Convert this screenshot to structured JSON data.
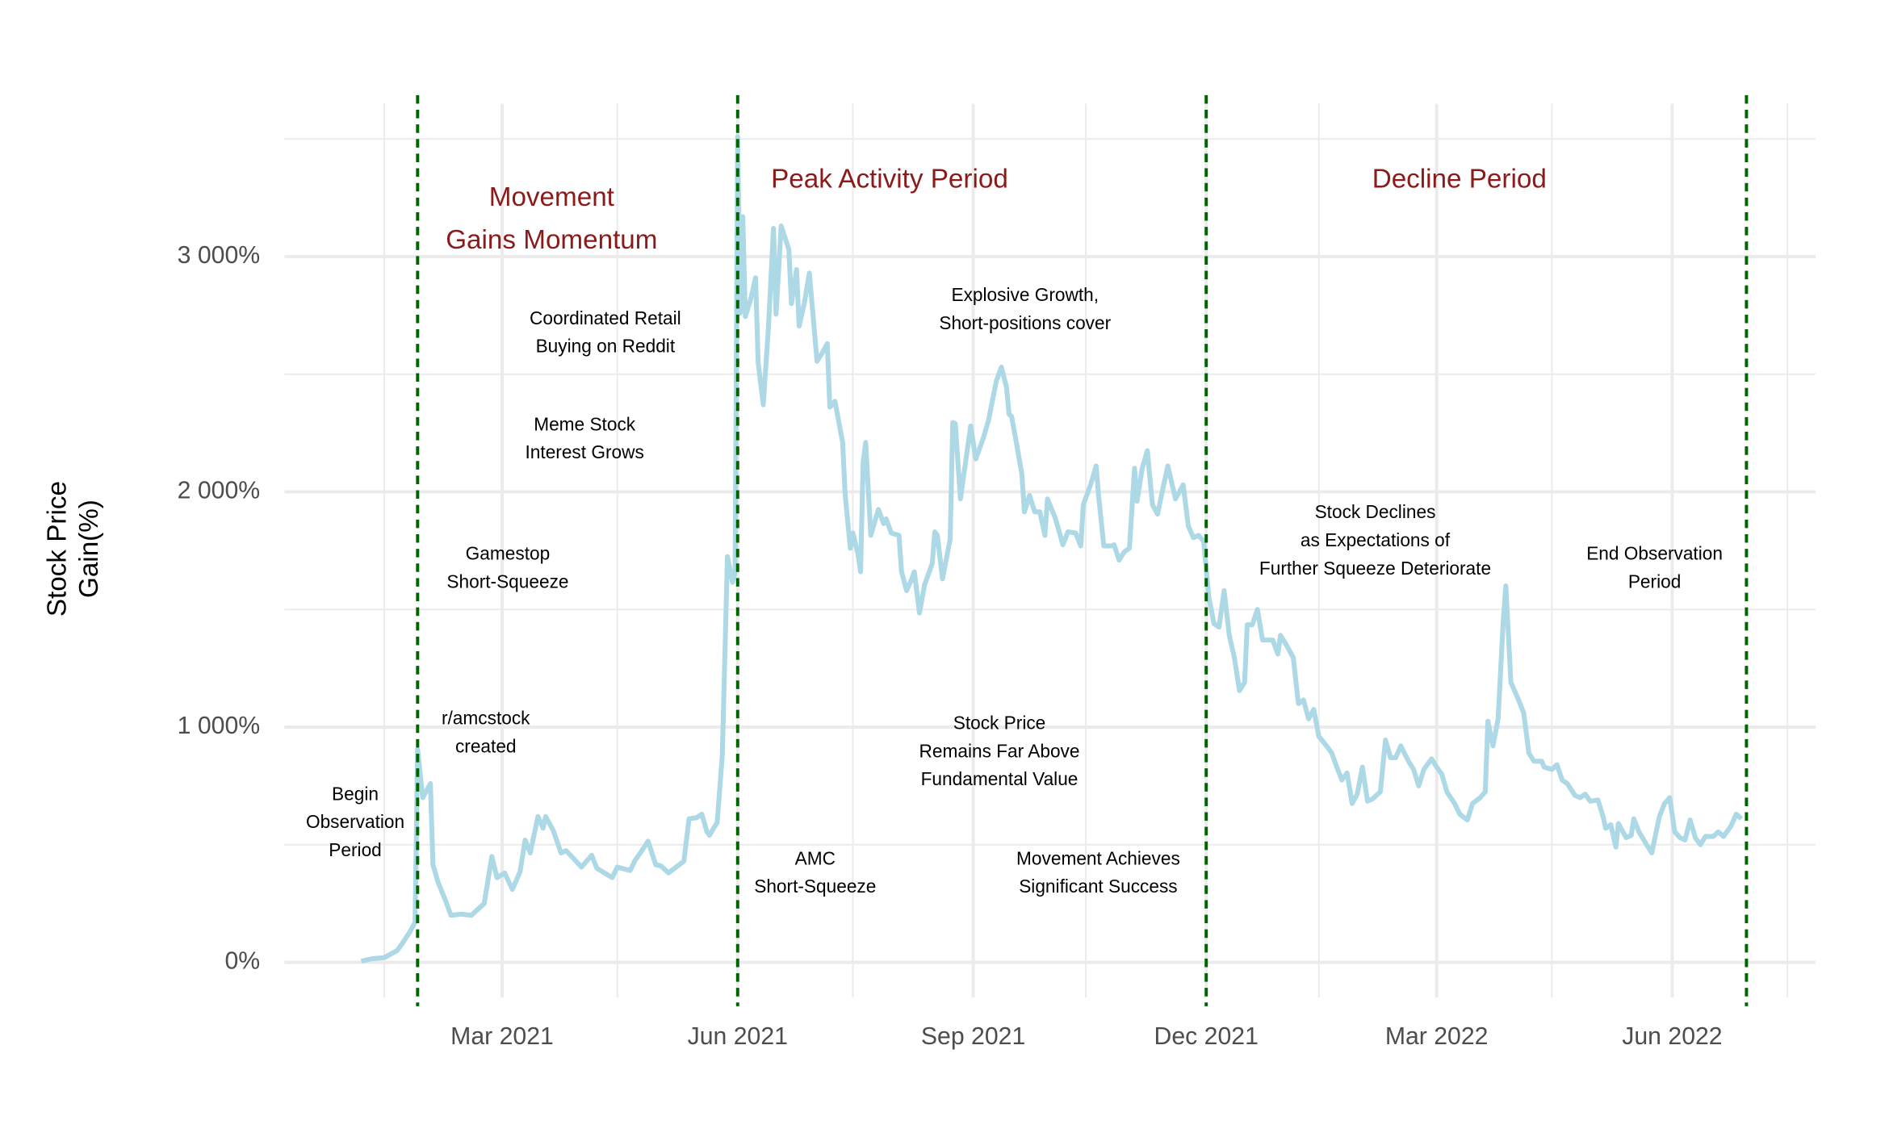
{
  "chart_data": {
    "type": "line",
    "y_axis_title": [
      "Stock Price",
      "Gain(%)"
    ],
    "xlim": [
      "2020-12-06",
      "2022-07-27"
    ],
    "xticks": [
      {
        "value": "2021-03-01",
        "label": "Mar 2021"
      },
      {
        "value": "2021-06-01",
        "label": "Jun 2021"
      },
      {
        "value": "2021-09-01",
        "label": "Sep 2021"
      },
      {
        "value": "2021-12-01",
        "label": "Dec 2021"
      },
      {
        "value": "2022-03-01",
        "label": "Mar 2022"
      },
      {
        "value": "2022-06-01",
        "label": "Jun 2022"
      }
    ],
    "x_minor_grid": [
      "2021-01-14",
      "2021-04-15",
      "2021-07-16",
      "2021-10-15",
      "2022-01-14",
      "2022-04-15",
      "2022-07-16"
    ],
    "ylim": [
      -150,
      3650
    ],
    "yticks": [
      {
        "value": 0,
        "label": "0%"
      },
      {
        "value": 1000,
        "label": "1 000%"
      },
      {
        "value": 2000,
        "label": "2 000%"
      },
      {
        "value": 3000,
        "label": "3 000%"
      }
    ],
    "y_minor_grid": [
      500,
      1500,
      2500,
      3500
    ],
    "grid": true,
    "series": [
      {
        "color": "#add8e6",
        "x": [
          "2021-01-05",
          "2021-01-09",
          "2021-01-14",
          "2021-01-19",
          "2021-01-21",
          "2021-01-24",
          "2021-01-26",
          "2021-01-27",
          "2021-01-29",
          "2021-02-01",
          "2021-02-02",
          "2021-02-04",
          "2021-02-07",
          "2021-02-09",
          "2021-02-13",
          "2021-02-17",
          "2021-02-19",
          "2021-02-22",
          "2021-02-25",
          "2021-02-27",
          "2021-03-02",
          "2021-03-05",
          "2021-03-08",
          "2021-03-10",
          "2021-03-12",
          "2021-03-15",
          "2021-03-17",
          "2021-03-18",
          "2021-03-21",
          "2021-03-24",
          "2021-03-26",
          "2021-03-29",
          "2021-04-01",
          "2021-04-05",
          "2021-04-07",
          "2021-04-10",
          "2021-04-13",
          "2021-04-15",
          "2021-04-20",
          "2021-04-22",
          "2021-04-24",
          "2021-04-27",
          "2021-04-30",
          "2021-05-02",
          "2021-05-05",
          "2021-05-08",
          "2021-05-11",
          "2021-05-13",
          "2021-05-16",
          "2021-05-18",
          "2021-05-20",
          "2021-05-21",
          "2021-05-24",
          "2021-05-26",
          "2021-05-28",
          "2021-05-30",
          "2021-05-31",
          "2021-06-01",
          "2021-06-02",
          "2021-06-03",
          "2021-06-04",
          "2021-06-06",
          "2021-06-08",
          "2021-06-09",
          "2021-06-11",
          "2021-06-13",
          "2021-06-15",
          "2021-06-16",
          "2021-06-18",
          "2021-06-21",
          "2021-06-22",
          "2021-06-24",
          "2021-06-25",
          "2021-06-27",
          "2021-06-29",
          "2021-07-02",
          "2021-07-04",
          "2021-07-06",
          "2021-07-07",
          "2021-07-09",
          "2021-07-12",
          "2021-07-13",
          "2021-07-15",
          "2021-07-16",
          "2021-07-18",
          "2021-07-19",
          "2021-07-20",
          "2021-07-21",
          "2021-07-23",
          "2021-07-25",
          "2021-07-26",
          "2021-07-28",
          "2021-07-29",
          "2021-07-31",
          "2021-08-03",
          "2021-08-04",
          "2021-08-06",
          "2021-08-08",
          "2021-08-09",
          "2021-08-11",
          "2021-08-13",
          "2021-08-16",
          "2021-08-17",
          "2021-08-18",
          "2021-08-20",
          "2021-08-23",
          "2021-08-24",
          "2021-08-25",
          "2021-08-27",
          "2021-08-29",
          "2021-08-31",
          "2021-09-02",
          "2021-09-05",
          "2021-09-07",
          "2021-09-10",
          "2021-09-12",
          "2021-09-14",
          "2021-09-15",
          "2021-09-16",
          "2021-09-18",
          "2021-09-20",
          "2021-09-21",
          "2021-09-23",
          "2021-09-25",
          "2021-09-27",
          "2021-09-29",
          "2021-09-30",
          "2021-10-03",
          "2021-10-05",
          "2021-10-06",
          "2021-10-08",
          "2021-10-11",
          "2021-10-13",
          "2021-10-14",
          "2021-10-17",
          "2021-10-19",
          "2021-10-20",
          "2021-10-22",
          "2021-10-25",
          "2021-10-26",
          "2021-10-28",
          "2021-10-30",
          "2021-11-01",
          "2021-11-03",
          "2021-11-04",
          "2021-11-06",
          "2021-11-08",
          "2021-11-10",
          "2021-11-12",
          "2021-11-14",
          "2021-11-16",
          "2021-11-19",
          "2021-11-22",
          "2021-11-24",
          "2021-11-26",
          "2021-11-28",
          "2021-11-30",
          "2021-12-02",
          "2021-12-04",
          "2021-12-06",
          "2021-12-08",
          "2021-12-10",
          "2021-12-12",
          "2021-12-14",
          "2021-12-16",
          "2021-12-17",
          "2021-12-19",
          "2021-12-21",
          "2021-12-23",
          "2021-12-27",
          "2021-12-29",
          "2021-12-30",
          "2022-01-01",
          "2022-01-04",
          "2022-01-06",
          "2022-01-08",
          "2022-01-10",
          "2022-01-12",
          "2022-01-14",
          "2022-01-17",
          "2022-01-19",
          "2022-01-21",
          "2022-01-23",
          "2022-01-25",
          "2022-01-27",
          "2022-01-29",
          "2022-01-31",
          "2022-02-02",
          "2022-02-04",
          "2022-02-07",
          "2022-02-09",
          "2022-02-11",
          "2022-02-13",
          "2022-02-15",
          "2022-02-18",
          "2022-02-20",
          "2022-02-22",
          "2022-02-24",
          "2022-02-27",
          "2022-03-01",
          "2022-03-03",
          "2022-03-05",
          "2022-03-08",
          "2022-03-10",
          "2022-03-13",
          "2022-03-15",
          "2022-03-18",
          "2022-03-20",
          "2022-03-21",
          "2022-03-23",
          "2022-03-25",
          "2022-03-27",
          "2022-03-28",
          "2022-03-30",
          "2022-04-02",
          "2022-04-04",
          "2022-04-06",
          "2022-04-08",
          "2022-04-11",
          "2022-04-12",
          "2022-04-15",
          "2022-04-17",
          "2022-04-19",
          "2022-04-21",
          "2022-04-24",
          "2022-04-26",
          "2022-04-28",
          "2022-04-30",
          "2022-05-03",
          "2022-05-05",
          "2022-05-06",
          "2022-05-08",
          "2022-05-10",
          "2022-05-11",
          "2022-05-14",
          "2022-05-16",
          "2022-05-17",
          "2022-05-19",
          "2022-05-22",
          "2022-05-24",
          "2022-05-27",
          "2022-05-29",
          "2022-05-31",
          "2022-06-02",
          "2022-06-04",
          "2022-06-06",
          "2022-06-08",
          "2022-06-10",
          "2022-06-12",
          "2022-06-14",
          "2022-06-17",
          "2022-06-19",
          "2022-06-21",
          "2022-06-24",
          "2022-06-26",
          "2022-06-28"
        ],
        "values": [
          5,
          15,
          20,
          50,
          80,
          130,
          170,
          905,
          700,
          760,
          415,
          340,
          260,
          200,
          205,
          200,
          220,
          250,
          450,
          360,
          380,
          310,
          385,
          520,
          465,
          620,
          570,
          620,
          560,
          465,
          475,
          440,
          405,
          455,
          400,
          380,
          360,
          405,
          390,
          435,
          465,
          515,
          415,
          410,
          380,
          405,
          430,
          610,
          615,
          630,
          555,
          540,
          595,
          880,
          1725,
          1615,
          1660,
          3510,
          2760,
          3170,
          2745,
          2815,
          2910,
          2550,
          2370,
          2695,
          3120,
          2755,
          3130,
          3030,
          2800,
          2945,
          2705,
          2800,
          2930,
          2555,
          2590,
          2630,
          2360,
          2385,
          2210,
          1985,
          1760,
          1825,
          1735,
          1660,
          2125,
          2210,
          1815,
          1890,
          1925,
          1865,
          1885,
          1825,
          1815,
          1660,
          1580,
          1630,
          1660,
          1485,
          1605,
          1695,
          1830,
          1815,
          1630,
          1800,
          2295,
          2290,
          1970,
          2125,
          2280,
          2140,
          2230,
          2305,
          2470,
          2530,
          2445,
          2330,
          2320,
          2200,
          2075,
          1915,
          1985,
          1915,
          1915,
          1815,
          1970,
          1890,
          1815,
          1775,
          1830,
          1825,
          1770,
          1945,
          2035,
          2110,
          1980,
          1770,
          1770,
          1775,
          1710,
          1745,
          1760,
          2100,
          1960,
          2100,
          2175,
          1945,
          1905,
          2010,
          2110,
          1970,
          2030,
          1855,
          1805,
          1815,
          1790,
          1555,
          1440,
          1425,
          1580,
          1390,
          1295,
          1155,
          1190,
          1435,
          1435,
          1500,
          1370,
          1370,
          1310,
          1390,
          1355,
          1295,
          1100,
          1115,
          1035,
          1075,
          960,
          920,
          890,
          830,
          775,
          805,
          675,
          715,
          830,
          685,
          695,
          725,
          945,
          870,
          870,
          920,
          855,
          820,
          750,
          820,
          865,
          830,
          800,
          725,
          675,
          630,
          605,
          675,
          700,
          725,
          1025,
          920,
          1035,
          1450,
          1600,
          1190,
          1115,
          1060,
          890,
          855,
          855,
          830,
          820,
          840,
          775,
          760,
          710,
          700,
          715,
          685,
          690,
          620,
          570,
          585,
          490,
          590,
          530,
          540,
          610,
          555,
          500,
          465,
          620,
          675,
          700,
          555,
          530,
          520,
          605,
          530,
          500,
          535,
          535,
          555,
          535,
          580,
          630,
          610
        ]
      }
    ],
    "vlines": {
      "color": "#006400",
      "x": [
        "2021-01-27",
        "2021-06-01",
        "2021-12-01",
        "2022-06-30"
      ]
    },
    "period_color": "#8b1a1a",
    "periods": [
      [
        "Movement",
        "Gains Momentum"
      ],
      [
        "Peak Activity Period"
      ],
      [
        "Decline Period"
      ]
    ],
    "annotations": [
      [
        "Begin",
        "Observation",
        "Period"
      ],
      [
        "r/amcstock",
        "created"
      ],
      [
        "Gamestop",
        "Short-Squeeze"
      ],
      [
        "Meme Stock",
        "Interest Grows"
      ],
      [
        "Coordinated Retail",
        "Buying on Reddit"
      ],
      [
        "AMC",
        "Short-Squeeze"
      ],
      [
        "Explosive Growth,",
        "Short-positions cover"
      ],
      [
        "Stock Price",
        "Remains Far Above",
        "Fundamental Value"
      ],
      [
        "Movement Achieves",
        "Significant Success"
      ],
      [
        "Stock Declines",
        "as Expectations of",
        "Further Squeeze Deteriorate"
      ],
      [
        "End Observation",
        "Period"
      ]
    ]
  }
}
